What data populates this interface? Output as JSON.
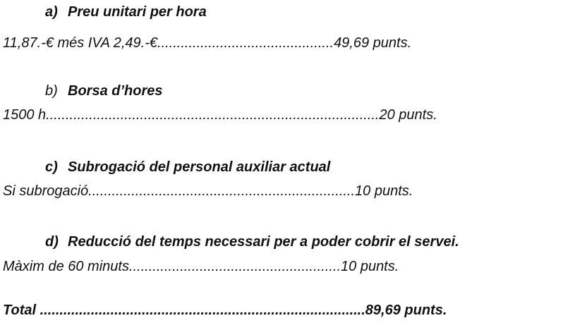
{
  "sections": [
    {
      "letter": "a)",
      "title": "Preu unitari per hora",
      "line": "11,87.-€ més IVA 2,49.-€.............................................49,69 punts."
    },
    {
      "letter": "b)",
      "title": "Borsa d’hores",
      "line": "1500 h.....................................................................................20 punts."
    },
    {
      "letter": "c)",
      "title": "Subrogació del personal auxiliar actual",
      "line": "Si subrogació....................................................................10 punts."
    },
    {
      "letter": "d)",
      "title": "Reducció del temps necessari per a poder cobrir el servei.",
      "line": "Màxim de 60 minuts......................................................10 punts."
    }
  ],
  "total": "Total ...................................................................................89,69 punts."
}
